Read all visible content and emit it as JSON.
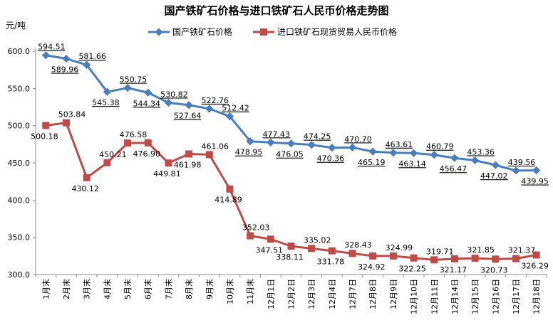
{
  "chart_data": {
    "type": "line",
    "title": "国产铁矿石价格与进口铁矿石人民币价格走势图",
    "ylabel": "元/吨",
    "xlabel": "",
    "ylim": [
      300,
      600
    ],
    "yticks": [
      "300.0",
      "350.0",
      "400.0",
      "450.0",
      "500.0",
      "550.0",
      "600.0"
    ],
    "grid": false,
    "legend": "top",
    "categories": [
      "1月末",
      "2月末",
      "3月末",
      "4月末",
      "5月末",
      "6月末",
      "7月末",
      "8月末",
      "9月末",
      "10月末",
      "11月末",
      "12月1日",
      "12月2日",
      "12月3日",
      "12月4日",
      "12月7日",
      "12月8日",
      "12月9日",
      "12月10日",
      "12月11日",
      "12月14日",
      "12月15日",
      "12月16日",
      "12月17日",
      "12月18日"
    ],
    "series": [
      {
        "name": "国产铁矿石价格",
        "color": "#4a7ebb",
        "values": [
          594.51,
          589.96,
          581.66,
          545.38,
          550.75,
          544.34,
          530.82,
          527.64,
          522.76,
          512.42,
          478.95,
          477.43,
          476.05,
          474.25,
          470.36,
          470.7,
          465.19,
          463.61,
          463.14,
          460.79,
          456.47,
          453.36,
          447.02,
          439.56,
          439.95
        ]
      },
      {
        "name": "进口铁矿石现货贸易人民币价格",
        "color": "#be4b48",
        "values": [
          500.18,
          503.84,
          430.12,
          450.21,
          476.58,
          476.9,
          449.81,
          461.98,
          461.06,
          414.89,
          352.03,
          347.51,
          338.11,
          335.02,
          331.78,
          328.43,
          324.92,
          324.99,
          322.25,
          319.71,
          321.17,
          321.85,
          320.73,
          321.37,
          326.29
        ]
      }
    ]
  }
}
